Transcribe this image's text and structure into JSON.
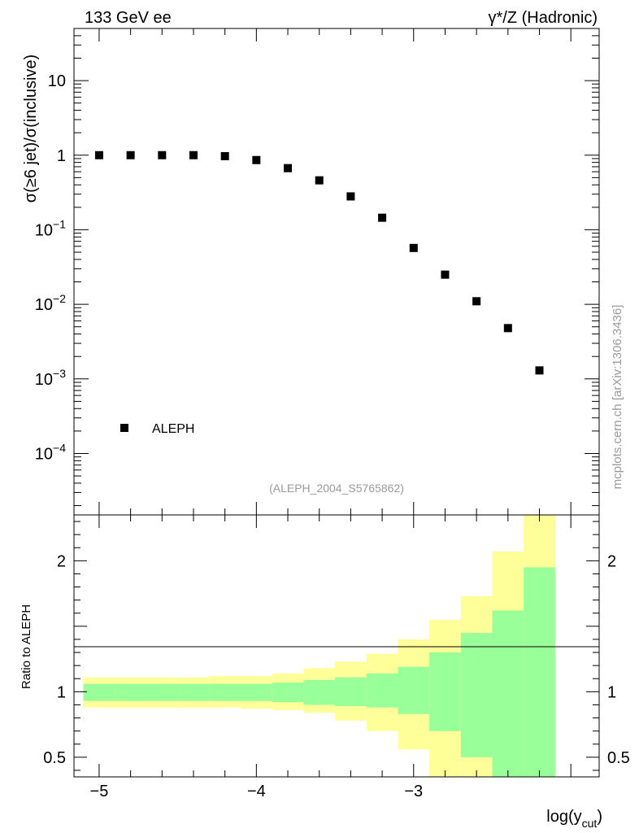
{
  "header": {
    "energy": "133 GeV ee",
    "process": "γ*/Z (Hadronic)"
  },
  "watermark": "mcplots.cern.ch [arXiv:1306.3436]",
  "analysis_id": "(ALEPH_2004_S5765862)",
  "colors": {
    "band_inner": "#99ff99",
    "band_outer": "#ffff99",
    "marker": "#000000",
    "grey_text": "#9a9a9a"
  },
  "chart_data": [
    {
      "type": "scatter",
      "title": "",
      "xlabel": "log(y_cut)",
      "ylabel": "σ(≥6 jet)/σ(inclusive)",
      "yscale": "log",
      "xlim": [
        -5.16,
        -1.82
      ],
      "ylim": [
        1.5e-05,
        50
      ],
      "legend": {
        "entries": [
          "ALEPH"
        ],
        "position": "lower-left"
      },
      "y_ticks": [
        {
          "v": 10,
          "base": "10",
          "exp": ""
        },
        {
          "v": 1,
          "base": "1",
          "exp": ""
        },
        {
          "v": 0.1,
          "base": "10",
          "exp": "−1"
        },
        {
          "v": 0.01,
          "base": "10",
          "exp": "−2"
        },
        {
          "v": 0.001,
          "base": "10",
          "exp": "−3"
        },
        {
          "v": 0.0001,
          "base": "10",
          "exp": "−4"
        }
      ],
      "x_ticks": [
        {
          "v": -5,
          "label": "−5"
        },
        {
          "v": -4,
          "label": "−4"
        },
        {
          "v": -3,
          "label": "−3"
        }
      ],
      "series": [
        {
          "name": "ALEPH",
          "x": [
            -5.0,
            -4.8,
            -4.6,
            -4.4,
            -4.2,
            -4.0,
            -3.8,
            -3.6,
            -3.4,
            -3.2,
            -3.0,
            -2.8,
            -2.6,
            -2.4,
            -2.2
          ],
          "y": [
            1.0,
            1.0,
            1.0,
            1.0,
            0.97,
            0.86,
            0.67,
            0.46,
            0.28,
            0.145,
            0.057,
            0.025,
            0.011,
            0.0048,
            0.0013
          ]
        }
      ]
    },
    {
      "type": "area",
      "title": "",
      "xlabel": "log(y_cut)",
      "ylabel": "Ratio to ALEPH",
      "xlim": [
        -5.16,
        -1.82
      ],
      "ylim": [
        0.35,
        2.35
      ],
      "y_ticks": [
        {
          "v": 2,
          "label": "2"
        },
        {
          "v": 1,
          "label": "1"
        },
        {
          "v": 0.5,
          "label": "0.5"
        }
      ],
      "reference_line": 1,
      "bin_edges": [
        -5.1,
        -4.9,
        -4.7,
        -4.5,
        -4.3,
        -4.1,
        -3.9,
        -3.7,
        -3.5,
        -3.3,
        -3.1,
        -2.9,
        -2.7,
        -2.5,
        -2.3,
        -2.1
      ],
      "series": [
        {
          "name": "inner",
          "low": [
            0.93,
            0.93,
            0.93,
            0.93,
            0.93,
            0.93,
            0.92,
            0.9,
            0.89,
            0.88,
            0.83,
            0.7,
            0.5,
            0.35,
            0.35
          ],
          "high": [
            1.06,
            1.06,
            1.06,
            1.06,
            1.06,
            1.06,
            1.07,
            1.09,
            1.11,
            1.14,
            1.19,
            1.3,
            1.45,
            1.62,
            1.95
          ]
        },
        {
          "name": "outer",
          "low": [
            0.88,
            0.88,
            0.88,
            0.88,
            0.88,
            0.87,
            0.86,
            0.84,
            0.78,
            0.7,
            0.56,
            0.35,
            0.35,
            0.35,
            0.35
          ],
          "high": [
            1.11,
            1.11,
            1.11,
            1.11,
            1.12,
            1.12,
            1.14,
            1.18,
            1.23,
            1.29,
            1.4,
            1.55,
            1.73,
            2.07,
            2.45
          ]
        }
      ]
    }
  ]
}
